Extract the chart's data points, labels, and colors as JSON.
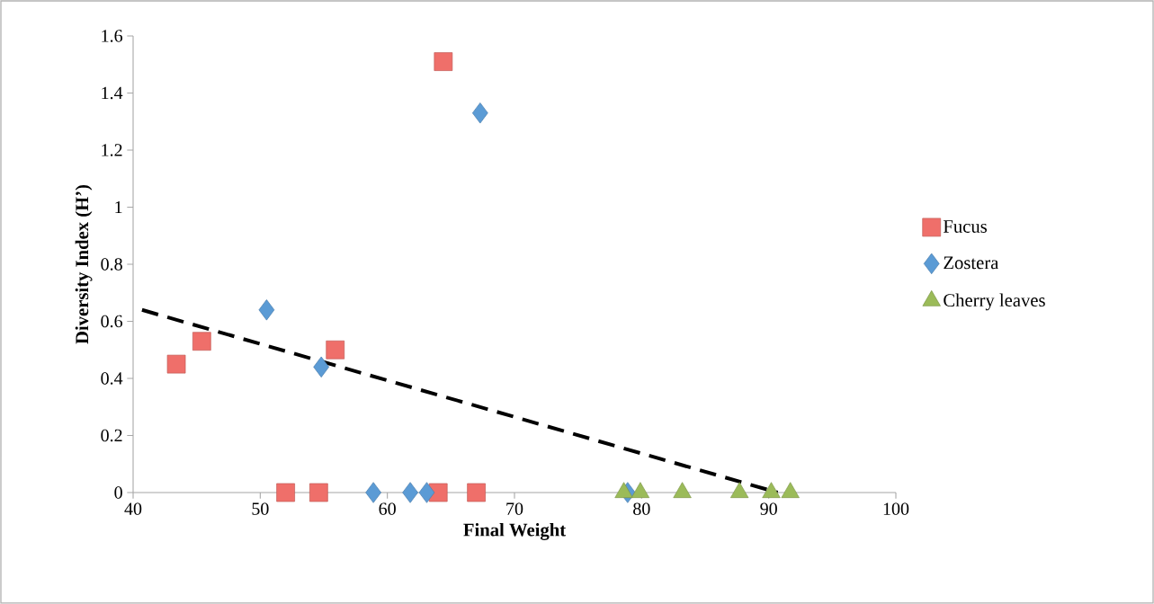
{
  "chart_data": {
    "type": "scatter",
    "xlabel": "Final Weight",
    "ylabel": "Diversity Index (H’)",
    "xlim": [
      40,
      100
    ],
    "xticks": [
      40,
      50,
      60,
      70,
      80,
      90,
      100
    ],
    "ylim": [
      0,
      1.6
    ],
    "yticks": [
      0,
      0.2,
      0.4,
      0.6,
      0.8,
      1,
      1.2,
      1.4,
      1.6
    ],
    "grid": false,
    "legend": "right",
    "series": [
      {
        "name": "Fucus",
        "color": "#ef6f6a",
        "marker": "square",
        "x": [
          43.4,
          45.4,
          55.9,
          64.4,
          52.0,
          54.6,
          64.0,
          67.0
        ],
        "values": [
          0.45,
          0.53,
          0.5,
          1.51,
          0,
          0,
          0,
          0
        ]
      },
      {
        "name": "Zostera",
        "color": "#5b9bd5",
        "marker": "diamond",
        "x": [
          50.5,
          54.8,
          67.3,
          58.9,
          61.8,
          63.1,
          78.9
        ],
        "values": [
          0.64,
          0.44,
          1.33,
          0,
          0,
          0,
          0
        ]
      },
      {
        "name": "Cherry leaves",
        "color": "#9bbb59",
        "marker": "triangle",
        "x": [
          78.6,
          79.9,
          83.2,
          87.7,
          90.2,
          91.7
        ],
        "values": [
          0,
          0,
          0,
          0,
          0,
          0
        ]
      },
      {
        "type": "line",
        "color": "#000000",
        "marker": "none",
        "line_style": "dashed",
        "x": [
          40.7,
          90.7
        ],
        "values": [
          0.64,
          0
        ]
      }
    ]
  }
}
